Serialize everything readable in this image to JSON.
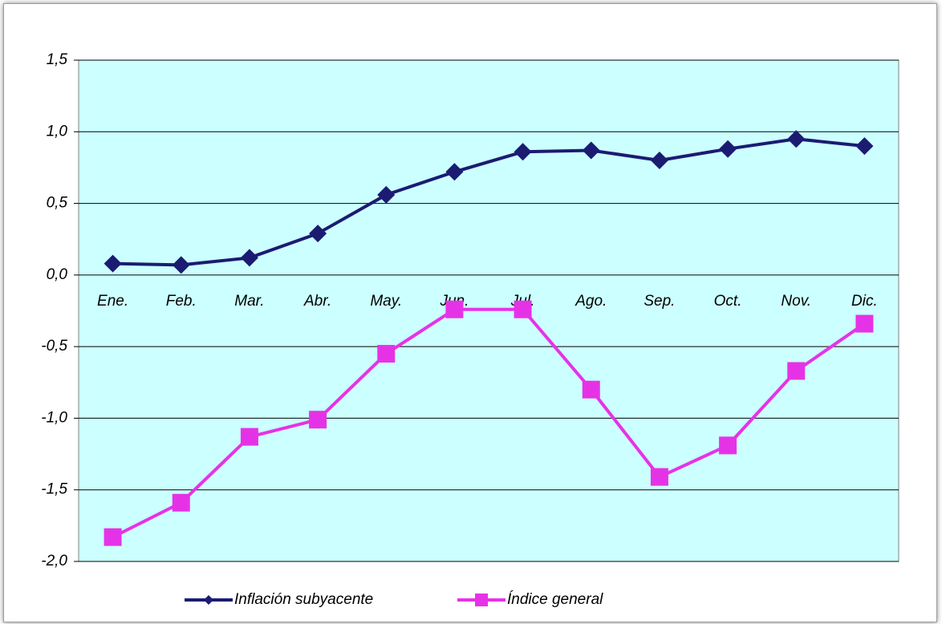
{
  "chart_data": {
    "type": "line",
    "categories": [
      "Ene.",
      "Feb.",
      "Mar.",
      "Abr.",
      "May.",
      "Jun.",
      "Jul.",
      "Ago.",
      "Sep.",
      "Oct.",
      "Nov.",
      "Dic."
    ],
    "series": [
      {
        "name": "Inflación subyacente",
        "color": "#1b1b72",
        "marker": "diamond",
        "values": [
          0.08,
          0.07,
          0.12,
          0.29,
          0.56,
          0.72,
          0.86,
          0.87,
          0.8,
          0.88,
          0.95,
          0.9
        ]
      },
      {
        "name": "Índice general",
        "color": "#e632e6",
        "marker": "square",
        "values": [
          -1.83,
          -1.59,
          -1.13,
          -1.01,
          -0.55,
          -0.24,
          -0.24,
          -0.8,
          -1.41,
          -1.19,
          -0.67,
          -0.34
        ]
      }
    ],
    "ylim": [
      -2,
      1.5
    ],
    "yticks": [
      {
        "value": -2,
        "label": "-2,0"
      },
      {
        "value": -1.5,
        "label": "-1,5"
      },
      {
        "value": -1,
        "label": "-1,0"
      },
      {
        "value": -0.5,
        "label": "-0,5"
      },
      {
        "value": 0,
        "label": "0,0"
      },
      {
        "value": 0.5,
        "label": "0,5"
      },
      {
        "value": 1,
        "label": "1,0"
      },
      {
        "value": 1.5,
        "label": "1,5"
      }
    ],
    "grid": true,
    "legend": "bottom"
  }
}
